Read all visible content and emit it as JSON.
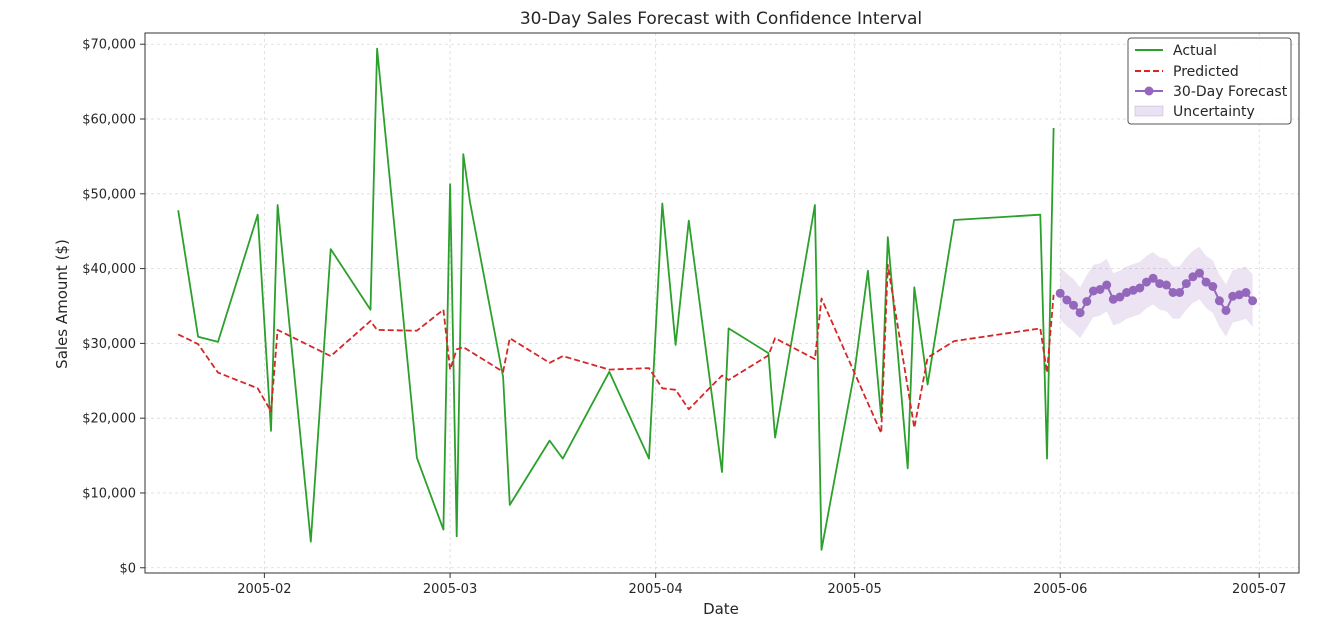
{
  "chart_data": {
    "type": "line",
    "title": "30-Day Sales Forecast with Confidence Interval",
    "xlabel": "Date",
    "ylabel": "Sales Amount ($)",
    "xlim": [
      "2005-01-14",
      "2005-07-07"
    ],
    "ylim": [
      -700,
      71500
    ],
    "grid": true,
    "legend_position": "top-right",
    "x_ticks": [
      {
        "date": "2005-02-01",
        "label": "2005-02"
      },
      {
        "date": "2005-03-01",
        "label": "2005-03"
      },
      {
        "date": "2005-04-01",
        "label": "2005-04"
      },
      {
        "date": "2005-05-01",
        "label": "2005-05"
      },
      {
        "date": "2005-06-01",
        "label": "2005-06"
      },
      {
        "date": "2005-07-01",
        "label": "2005-07"
      }
    ],
    "y_ticks": [
      {
        "value": 0,
        "label": "$0"
      },
      {
        "value": 10000,
        "label": "$10,000"
      },
      {
        "value": 20000,
        "label": "$20,000"
      },
      {
        "value": 30000,
        "label": "$30,000"
      },
      {
        "value": 40000,
        "label": "$40,000"
      },
      {
        "value": 50000,
        "label": "$50,000"
      },
      {
        "value": 60000,
        "label": "$60,000"
      },
      {
        "value": 70000,
        "label": "$70,000"
      }
    ],
    "series": [
      {
        "name": "Actual",
        "style": "solid",
        "color": "#2ca02c",
        "x": [
          "2005-01-19",
          "2005-01-22",
          "2005-01-25",
          "2005-01-31",
          "2005-02-02",
          "2005-02-03",
          "2005-02-08",
          "2005-02-11",
          "2005-02-17",
          "2005-02-18",
          "2005-02-24",
          "2005-02-28",
          "2005-03-01",
          "2005-03-02",
          "2005-03-03",
          "2005-03-04",
          "2005-03-09",
          "2005-03-10",
          "2005-03-16",
          "2005-03-18",
          "2005-03-25",
          "2005-03-31",
          "2005-04-02",
          "2005-04-04",
          "2005-04-06",
          "2005-04-11",
          "2005-04-12",
          "2005-04-18",
          "2005-04-19",
          "2005-04-25",
          "2005-04-26",
          "2005-05-01",
          "2005-05-03",
          "2005-05-05",
          "2005-05-06",
          "2005-05-09",
          "2005-05-10",
          "2005-05-12",
          "2005-05-16",
          "2005-05-29",
          "2005-05-30",
          "2005-05-31"
        ],
        "y": [
          47800,
          30900,
          30200,
          47200,
          18300,
          48500,
          3500,
          42600,
          34500,
          69400,
          14700,
          5100,
          51300,
          4200,
          55300,
          48900,
          25500,
          8400,
          17000,
          14600,
          26200,
          14600,
          48700,
          29800,
          46400,
          12800,
          32000,
          28700,
          17400,
          48500,
          2400,
          26300,
          39700,
          20100,
          44200,
          13300,
          37500,
          24500,
          46500,
          47200,
          14600,
          58800
        ]
      },
      {
        "name": "Predicted",
        "style": "dashed",
        "color": "#d62728",
        "x": [
          "2005-01-19",
          "2005-01-22",
          "2005-01-25",
          "2005-01-31",
          "2005-02-02",
          "2005-02-03",
          "2005-02-11",
          "2005-02-17",
          "2005-02-18",
          "2005-02-24",
          "2005-02-28",
          "2005-03-01",
          "2005-03-02",
          "2005-03-03",
          "2005-03-09",
          "2005-03-10",
          "2005-03-16",
          "2005-03-18",
          "2005-03-25",
          "2005-03-31",
          "2005-04-02",
          "2005-04-04",
          "2005-04-06",
          "2005-04-11",
          "2005-04-12",
          "2005-04-18",
          "2005-04-19",
          "2005-04-25",
          "2005-04-26",
          "2005-05-05",
          "2005-05-06",
          "2005-05-10",
          "2005-05-12",
          "2005-05-16",
          "2005-05-29",
          "2005-05-30",
          "2005-05-31"
        ],
        "y": [
          31200,
          29900,
          26100,
          24000,
          20900,
          31800,
          28300,
          33000,
          31800,
          31700,
          34500,
          26500,
          29200,
          29500,
          26200,
          30700,
          27400,
          28300,
          26500,
          26700,
          24000,
          23800,
          21200,
          25700,
          25100,
          28400,
          30700,
          27900,
          36000,
          18000,
          40500,
          18700,
          28100,
          30300,
          32000,
          26100,
          36500
        ]
      },
      {
        "name": "30-Day Forecast",
        "style": "solid-markers",
        "color": "#9467bd",
        "x": [
          "2005-06-01",
          "2005-06-02",
          "2005-06-03",
          "2005-06-04",
          "2005-06-05",
          "2005-06-06",
          "2005-06-07",
          "2005-06-08",
          "2005-06-09",
          "2005-06-10",
          "2005-06-11",
          "2005-06-12",
          "2005-06-13",
          "2005-06-14",
          "2005-06-15",
          "2005-06-16",
          "2005-06-17",
          "2005-06-18",
          "2005-06-19",
          "2005-06-20",
          "2005-06-21",
          "2005-06-22",
          "2005-06-23",
          "2005-06-24",
          "2005-06-25",
          "2005-06-26",
          "2005-06-27",
          "2005-06-28",
          "2005-06-29",
          "2005-06-30"
        ],
        "y": [
          36700,
          35800,
          35100,
          34100,
          35600,
          37000,
          37200,
          37800,
          35900,
          36200,
          36800,
          37100,
          37400,
          38200,
          38700,
          38000,
          37800,
          36800,
          36800,
          38000,
          38900,
          39400,
          38200,
          37600,
          35700,
          34400,
          36300,
          36500,
          36800,
          35700
        ]
      }
    ],
    "band": {
      "name": "Uncertainty",
      "color": "#9467bd",
      "lower": [
        33200,
        32300,
        31600,
        30700,
        32100,
        33500,
        33700,
        34300,
        32400,
        32700,
        33300,
        33600,
        33900,
        34700,
        35200,
        34500,
        34300,
        33300,
        33300,
        34500,
        35400,
        35900,
        34700,
        34100,
        32200,
        30900,
        32800,
        33000,
        33300,
        32200
      ],
      "upper": [
        40200,
        39300,
        38600,
        37500,
        39100,
        40500,
        40700,
        41300,
        39400,
        39700,
        40300,
        40600,
        40900,
        41700,
        42200,
        41500,
        41300,
        40300,
        40300,
        41500,
        42400,
        42900,
        41700,
        41100,
        39200,
        37900,
        39800,
        40000,
        40300,
        39200
      ]
    }
  }
}
